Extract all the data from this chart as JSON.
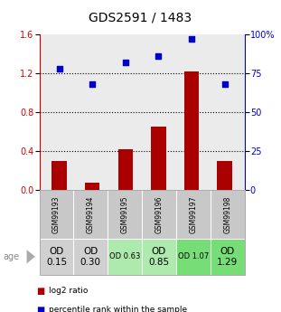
{
  "title": "GDS2591 / 1483",
  "samples": [
    "GSM99193",
    "GSM99194",
    "GSM99195",
    "GSM99196",
    "GSM99197",
    "GSM99198"
  ],
  "log2_ratio": [
    0.3,
    0.08,
    0.42,
    0.65,
    1.22,
    0.3
  ],
  "percentile_rank": [
    78,
    68,
    82,
    86,
    97,
    68
  ],
  "bar_color": "#aa0000",
  "dot_color": "#0000cc",
  "left_ylim": [
    0,
    1.6
  ],
  "right_ylim": [
    0,
    100
  ],
  "left_yticks": [
    0,
    0.4,
    0.8,
    1.2,
    1.6
  ],
  "right_yticks": [
    0,
    25,
    50,
    75,
    100
  ],
  "right_yticklabels": [
    "0",
    "25",
    "50",
    "75",
    "100%"
  ],
  "hlines": [
    0.4,
    0.8,
    1.2
  ],
  "row_labels": [
    "OD\n0.15",
    "OD\n0.30",
    "OD 0.63",
    "OD\n0.85",
    "OD 1.07",
    "OD\n1.29"
  ],
  "row_bg_colors": [
    "#d0d0d0",
    "#d0d0d0",
    "#aeeaae",
    "#aeeaae",
    "#77dd77",
    "#77dd77"
  ],
  "row_label_fontsize": [
    7.5,
    7.5,
    6.0,
    7.5,
    6.0,
    7.5
  ],
  "sample_box_color": "#c8c8c8",
  "age_label": "age",
  "legend_items": [
    "log2 ratio",
    "percentile rank within the sample"
  ],
  "bg_color": "#ffffff",
  "plot_bg": "#ebebeb",
  "bar_width": 0.45,
  "title_fontsize": 10,
  "axis_color_left": "#cc0000",
  "axis_color_right": "#0000cc",
  "tick_fontsize": 7
}
